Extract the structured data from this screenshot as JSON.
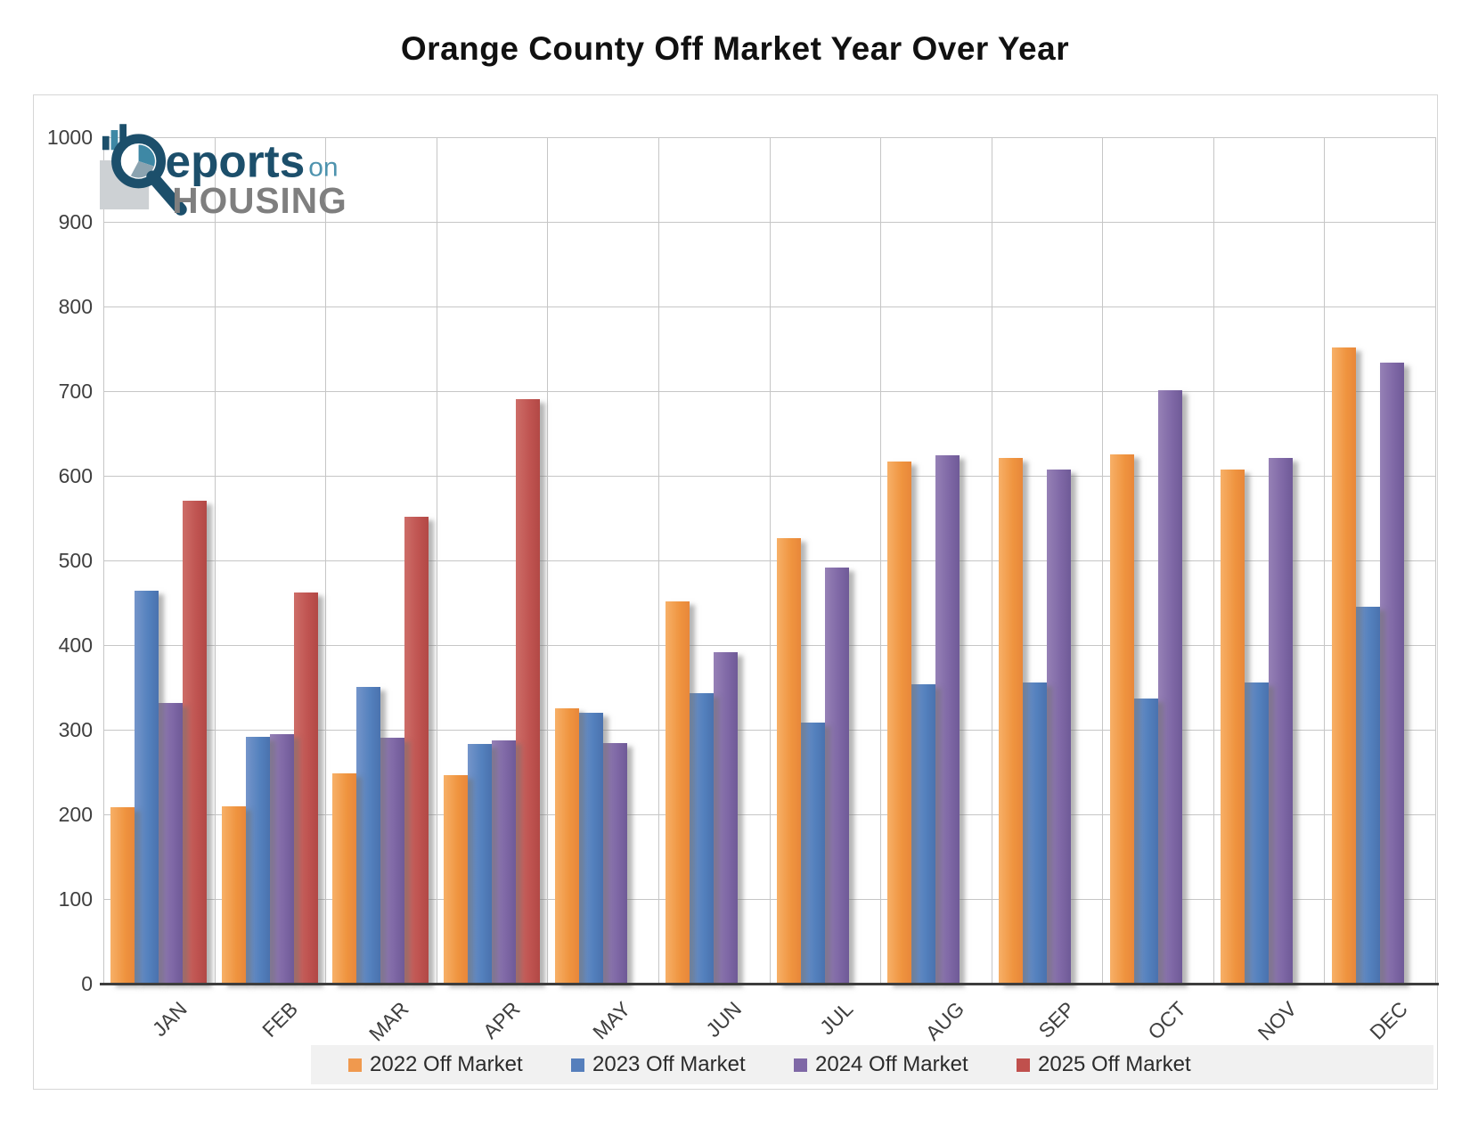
{
  "title": "Orange County Off Market Year Over Year",
  "logo": {
    "brand_main": "eports",
    "brand_mid": "on",
    "brand_bottom": "HOUSING"
  },
  "y_ticks": [
    "0",
    "100",
    "200",
    "300",
    "400",
    "500",
    "600",
    "700",
    "800",
    "900",
    "1000"
  ],
  "chart_data": {
    "type": "bar",
    "categories": [
      "JAN",
      "FEB",
      "MAR",
      "APR",
      "MAY",
      "JUN",
      "JUL",
      "AUG",
      "SEP",
      "OCT",
      "NOV",
      "DEC"
    ],
    "series": [
      {
        "name": "2022 Off Market",
        "color": "#F0994E",
        "values": [
          208,
          209,
          248,
          246,
          325,
          452,
          526,
          617,
          621,
          625,
          607,
          752
        ]
      },
      {
        "name": "2023 Off Market",
        "color": "#567FBC",
        "values": [
          464,
          292,
          350,
          283,
          320,
          343,
          308,
          354,
          356,
          337,
          356,
          445
        ]
      },
      {
        "name": "2024 Off Market",
        "color": "#7F68A6",
        "values": [
          332,
          295,
          291,
          287,
          284,
          392,
          492,
          624,
          607,
          701,
          621,
          734
        ]
      },
      {
        "name": "2025 Off Market",
        "color": "#C0504D",
        "values": [
          570,
          462,
          552,
          690,
          null,
          null,
          null,
          null,
          null,
          null,
          null,
          null
        ]
      }
    ],
    "title": "Orange County Off Market Year Over Year",
    "xlabel": "",
    "ylabel": "",
    "ylim": [
      0,
      1000
    ],
    "ytick_step": 100,
    "grid": true,
    "legend_position": "bottom"
  }
}
